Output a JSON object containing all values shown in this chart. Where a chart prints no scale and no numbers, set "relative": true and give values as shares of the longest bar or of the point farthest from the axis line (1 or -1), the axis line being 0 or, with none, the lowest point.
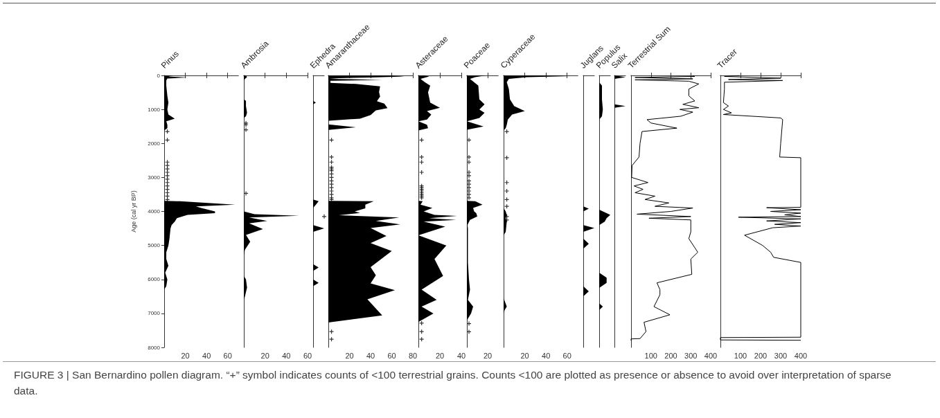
{
  "chart_data": [
    {
      "type": "area",
      "title": "Pinus",
      "ylabel": "Age (cal yr BP)",
      "orientation": "horizontal",
      "xlim": [
        0,
        70
      ],
      "xticks": [
        20,
        40,
        60
      ],
      "ylim": [
        8000,
        0
      ],
      "yticks": [
        0,
        1000,
        2000,
        3000,
        4000,
        5000,
        6000,
        7000,
        8000
      ],
      "annotations": [
        "FIGURE 3 | San Bernardino pollen diagram. “+” symbol indicates counts of <100 terrestrial grains. Counts <100 are plotted as presence or absence to avoid over interpretation of sparse data."
      ],
      "series": [
        {
          "color": "#000000",
          "x": [
            0,
            30,
            60,
            90,
            150,
            300,
            600,
            800,
            1000,
            1150,
            1270,
            1350,
            1450,
            1550,
            1620,
            3690,
            3700,
            3800,
            3850,
            3900,
            4000,
            4050,
            4100,
            4200,
            4300,
            4400,
            4500,
            4800,
            5000,
            5200,
            5400,
            5600,
            5800,
            6000,
            6200,
            6300
          ],
          "values": [
            8,
            4,
            22,
            3,
            2,
            2,
            3,
            4,
            3,
            4,
            10,
            2,
            3,
            3,
            0,
            0,
            15,
            67,
            30,
            35,
            48,
            48,
            22,
            12,
            10,
            7,
            6,
            5,
            4,
            2,
            2,
            4,
            1,
            3,
            2,
            0
          ]
        },
        {
          "type": "scatter",
          "marker": "cross",
          "color": "#000000",
          "x": [
            1650,
            1900,
            2550,
            2650,
            2750,
            2850,
            2950,
            3050,
            3150,
            3250,
            3350,
            3450,
            3550,
            3650
          ],
          "values": [
            3,
            3,
            3,
            3,
            3,
            3,
            3,
            3,
            3,
            3,
            3,
            3,
            3,
            3
          ]
        }
      ]
    },
    {
      "type": "area",
      "title": "Ambrosia",
      "orientation": "horizontal",
      "tick_labels": "x",
      "xlim": [
        0,
        60
      ],
      "xticks": [
        20,
        40,
        60
      ],
      "ylim": [
        8000,
        0
      ],
      "series": [
        {
          "color": "#000000",
          "x": [
            0,
            50,
            100,
            150,
            700,
            750,
            900,
            1100,
            1200,
            1250,
            4000,
            4079,
            4125,
            4180,
            4280,
            4350,
            4520,
            4690,
            4890,
            5130,
            5300,
            5900,
            6000,
            6240,
            6510,
            6600
          ],
          "values": [
            2,
            3,
            1,
            0,
            0,
            2,
            2,
            3,
            2,
            0,
            0,
            10,
            52,
            5,
            22,
            5,
            18,
            2,
            6,
            1,
            0,
            0,
            2,
            3,
            1,
            0
          ]
        },
        {
          "type": "scatter",
          "marker": "cross",
          "color": "#000000",
          "x": [
            1400,
            1450,
            1600,
            3470
          ],
          "values": [
            2,
            2,
            2,
            2
          ]
        }
      ]
    },
    {
      "type": "area",
      "title": "Ephedra",
      "orientation": "horizontal",
      "relative": true,
      "tick_labels": false,
      "ylim": [
        8000,
        0
      ],
      "series": [
        {
          "color": "#000000",
          "x": [
            750,
            800,
            850,
            3650,
            3700,
            3800,
            3900,
            4400,
            4500,
            4600,
            5550,
            5650,
            5750,
            6000,
            6100,
            6200
          ],
          "values": [
            0,
            0.25,
            0,
            0,
            0.5,
            0.25,
            0,
            0,
            1,
            0,
            0,
            0.5,
            0,
            0,
            0.5,
            0
          ]
        },
        {
          "type": "scatter",
          "marker": "cross",
          "color": "#000000",
          "x": [
            4150
          ],
          "values": [
            1
          ]
        }
      ]
    },
    {
      "type": "area",
      "title": "Amaranthaceae",
      "orientation": "horizontal",
      "tick_labels": "x",
      "xlim": [
        0,
        80
      ],
      "xticks": [
        20,
        40,
        60,
        80
      ],
      "ylim": [
        8000,
        0
      ],
      "series": [
        {
          "color": "#000000",
          "x": [
            0,
            30,
            60,
            80,
            100,
            130,
            160,
            220,
            250,
            320,
            490,
            620,
            760,
            830,
            960,
            1030,
            1165,
            1270,
            1335,
            1440,
            1525,
            1605,
            3690,
            3700,
            3800,
            3910,
            4000,
            4045,
            4112,
            4180,
            4280,
            4380,
            4490,
            4725,
            4930,
            5165,
            5640,
            5880,
            6115,
            6315,
            6585,
            7060,
            7265
          ],
          "values": [
            59,
            72,
            40,
            10,
            1,
            51,
            2,
            2,
            26,
            49,
            48,
            49,
            46,
            53,
            56,
            45,
            40,
            30,
            0,
            0,
            26,
            0,
            0,
            43,
            35,
            35,
            25,
            30,
            10,
            67,
            45,
            68,
            40,
            55,
            40,
            60,
            40,
            45,
            40,
            63,
            37,
            51,
            0
          ]
        },
        {
          "type": "scatter",
          "marker": "cross",
          "color": "#000000",
          "x": [
            1900,
            2400,
            2550,
            2700,
            2750,
            2800,
            2900,
            3000,
            3100,
            3200,
            3300,
            3400,
            3500,
            3600,
            3650,
            7535,
            7760
          ],
          "values": [
            3,
            3,
            3,
            3,
            3,
            3,
            3,
            3,
            3,
            3,
            3,
            3,
            3,
            3,
            3,
            3,
            3
          ]
        }
      ]
    },
    {
      "type": "area",
      "title": "Asteraceae",
      "orientation": "horizontal",
      "tick_labels": "x",
      "xlim": [
        0,
        40
      ],
      "xticks": [
        20,
        40
      ],
      "ylim": [
        8000,
        0
      ],
      "series": [
        {
          "color": "#000000",
          "x": [
            0,
            30,
            100,
            200,
            300,
            500,
            800,
            950,
            1050,
            1150,
            1300,
            1350,
            1450,
            1550,
            1620,
            3690,
            3700,
            3800,
            3900,
            4000,
            4100,
            4130,
            4200,
            4250,
            4300,
            4450,
            4700,
            5000,
            5400,
            5900,
            6300,
            6600,
            6800,
            7000,
            7250
          ],
          "values": [
            6,
            10,
            2,
            6,
            11,
            9,
            11,
            20,
            8,
            12,
            8,
            0,
            8,
            9,
            0,
            0,
            4,
            2,
            13,
            5,
            15,
            36,
            10,
            35,
            5,
            25,
            0,
            26,
            15,
            23,
            3,
            17,
            3,
            14,
            0
          ]
        },
        {
          "type": "scatter",
          "marker": "cross",
          "color": "#000000",
          "x": [
            1900,
            2400,
            2550,
            2850,
            3250,
            3300,
            3350,
            3400,
            3450,
            3500,
            3550,
            3600,
            7285,
            7535,
            7760
          ],
          "values": [
            3,
            3,
            3,
            3,
            3,
            3,
            3,
            3,
            3,
            3,
            3,
            3,
            3,
            3,
            3
          ]
        }
      ]
    },
    {
      "type": "area",
      "title": "Poaceae",
      "orientation": "horizontal",
      "tick_labels": "x",
      "xlim": [
        0,
        30
      ],
      "xticks": [
        20
      ],
      "ylim": [
        8000,
        0
      ],
      "series": [
        {
          "color": "#000000",
          "x": [
            0,
            50,
            100,
            300,
            700,
            850,
            1000,
            1100,
            1250,
            1350,
            1500,
            1600,
            3690,
            3700,
            3800,
            3900,
            4000,
            4050,
            4150,
            4250,
            4400,
            4500,
            5000,
            5500,
            6000,
            6300,
            6600,
            6800,
            7000,
            7200
          ],
          "values": [
            18,
            8,
            3,
            11,
            12,
            17,
            12,
            17,
            12,
            0,
            16,
            0,
            0,
            8,
            15,
            6,
            7,
            9,
            10,
            3,
            0.5,
            1,
            1,
            1,
            2,
            3,
            1,
            6,
            4,
            0
          ]
        },
        {
          "type": "scatter",
          "marker": "cross",
          "color": "#000000",
          "x": [
            1900,
            2400,
            2550,
            2850,
            2950,
            3100,
            3200,
            3300,
            3400,
            3500,
            3600,
            7300,
            7540
          ],
          "values": [
            2,
            2,
            2,
            2,
            2,
            2,
            2,
            2,
            2,
            2,
            2,
            2,
            2
          ]
        }
      ]
    },
    {
      "type": "area",
      "title": "Cyperaceae",
      "orientation": "horizontal",
      "tick_labels": "x",
      "xlim": [
        0,
        70
      ],
      "xticks": [
        20,
        40,
        60
      ],
      "ylim": [
        8000,
        0
      ],
      "series": [
        {
          "color": "#000000",
          "x": [
            0,
            20,
            50,
            100,
            200,
            400,
            700,
            900,
            1050,
            1150,
            1300,
            1450,
            1550,
            1620,
            3900,
            4000,
            4100,
            4200,
            4300,
            4600,
            4700,
            6550,
            6800,
            6900,
            7000
          ],
          "values": [
            50,
            62,
            22,
            5,
            3,
            5,
            6,
            10,
            20,
            8,
            4,
            3,
            2,
            0,
            0,
            2,
            3,
            2,
            3,
            2,
            0,
            0,
            3,
            1,
            0
          ]
        },
        {
          "type": "scatter",
          "marker": "cross",
          "color": "#000000",
          "x": [
            1650,
            2420,
            3150,
            3400,
            3650,
            3850,
            4150,
            4250
          ],
          "values": [
            3,
            3,
            3,
            3,
            3,
            3,
            3,
            3
          ]
        }
      ]
    },
    {
      "type": "area",
      "title": "Juglans",
      "orientation": "horizontal",
      "relative": true,
      "tick_labels": false,
      "ylim": [
        8000,
        0
      ],
      "series": [
        {
          "color": "#000000",
          "x": [
            3850,
            3920,
            4000,
            4400,
            4490,
            4600,
            4800,
            4950,
            5100,
            6200,
            6350,
            6500
          ],
          "values": [
            0,
            0.5,
            0,
            0,
            1,
            0,
            0,
            0.5,
            0,
            0,
            0.5,
            0
          ]
        }
      ]
    },
    {
      "type": "area",
      "title": "Populus",
      "orientation": "horizontal",
      "relative": true,
      "tick_labels": false,
      "ylim": [
        8000,
        0
      ],
      "series": [
        {
          "color": "#000000",
          "x": [
            200,
            300,
            700,
            1000,
            1200,
            1300,
            3950,
            4050,
            4100,
            4200,
            4300,
            4400,
            5800,
            5950,
            6100,
            6250,
            6700,
            6800,
            6900
          ],
          "values": [
            0,
            0.25,
            0.25,
            0.33,
            0.25,
            0,
            0,
            0.67,
            1,
            0.67,
            0.5,
            0,
            0,
            0.67,
            0.67,
            0,
            0,
            0.33,
            0
          ]
        }
      ]
    },
    {
      "type": "area",
      "title": "Salix",
      "orientation": "horizontal",
      "relative": true,
      "tick_labels": false,
      "ylim": [
        8000,
        0
      ],
      "series": [
        {
          "color": "#000000",
          "x": [
            0,
            50,
            100,
            850,
            900,
            950
          ],
          "values": [
            0,
            1,
            0,
            0,
            1,
            0
          ]
        }
      ]
    },
    {
      "type": "line",
      "title": "Terrestrial Sum",
      "orientation": "horizontal",
      "tick_labels": "x",
      "xlim": [
        0,
        400
      ],
      "xticks": [
        100,
        200,
        300,
        400
      ],
      "ylim": [
        8000,
        0
      ],
      "series": [
        {
          "color": "#000000",
          "x": [
            0,
            30,
            60,
            100,
            130,
            170,
            250,
            400,
            600,
            750,
            850,
            950,
            1000,
            1080,
            1200,
            1300,
            1400,
            1550,
            1650,
            2000,
            2400,
            2650,
            3000,
            3150,
            3250,
            3350,
            3450,
            3550,
            3650,
            3750,
            3850,
            3900,
            4000,
            4080,
            4150,
            4200,
            4250,
            4400,
            4600,
            4800,
            5200,
            5400,
            5850,
            6100,
            6300,
            6450,
            6800,
            7040,
            7260,
            7535,
            7740,
            7750,
            7800
          ],
          "values": [
            310,
            320,
            20,
            310,
            20,
            290,
            340,
            290,
            290,
            320,
            260,
            340,
            245,
            310,
            250,
            80,
            100,
            230,
            55,
            45,
            40,
            5,
            3,
            85,
            15,
            60,
            20,
            120,
            70,
            190,
            120,
            310,
            200,
            30,
            300,
            90,
            300,
            300,
            300,
            290,
            335,
            300,
            305,
            130,
            145,
            145,
            115,
            195,
            65,
            75,
            45,
            0,
            0
          ]
        }
      ]
    },
    {
      "type": "line",
      "title": "Tracer",
      "orientation": "horizontal",
      "tick_labels": "x",
      "xlim": [
        0,
        400
      ],
      "xticks": [
        100,
        200,
        300,
        400
      ],
      "ylim": [
        8000,
        0
      ],
      "series": [
        {
          "color": "#000000",
          "x": [
            0,
            30,
            80,
            120,
            150,
            200,
            400,
            800,
            900,
            1000,
            1100,
            1150,
            1250,
            1300,
            2000,
            2400,
            2420,
            3880,
            3890,
            3950,
            4000,
            4050,
            4100,
            4150,
            4170,
            4220,
            4280,
            4330,
            4380,
            4430,
            4480,
            4700,
            5000,
            5200,
            5350,
            5500,
            7700,
            7710,
            7780,
            7790
          ],
          "values": [
            95,
            20,
            300,
            40,
            310,
            20,
            20,
            15,
            40,
            15,
            55,
            15,
            300,
            310,
            300,
            295,
            400,
            400,
            230,
            400,
            250,
            400,
            320,
            400,
            90,
            400,
            230,
            400,
            270,
            400,
            260,
            120,
            210,
            250,
            265,
            400,
            400,
            0,
            0,
            400
          ]
        }
      ]
    }
  ]
}
